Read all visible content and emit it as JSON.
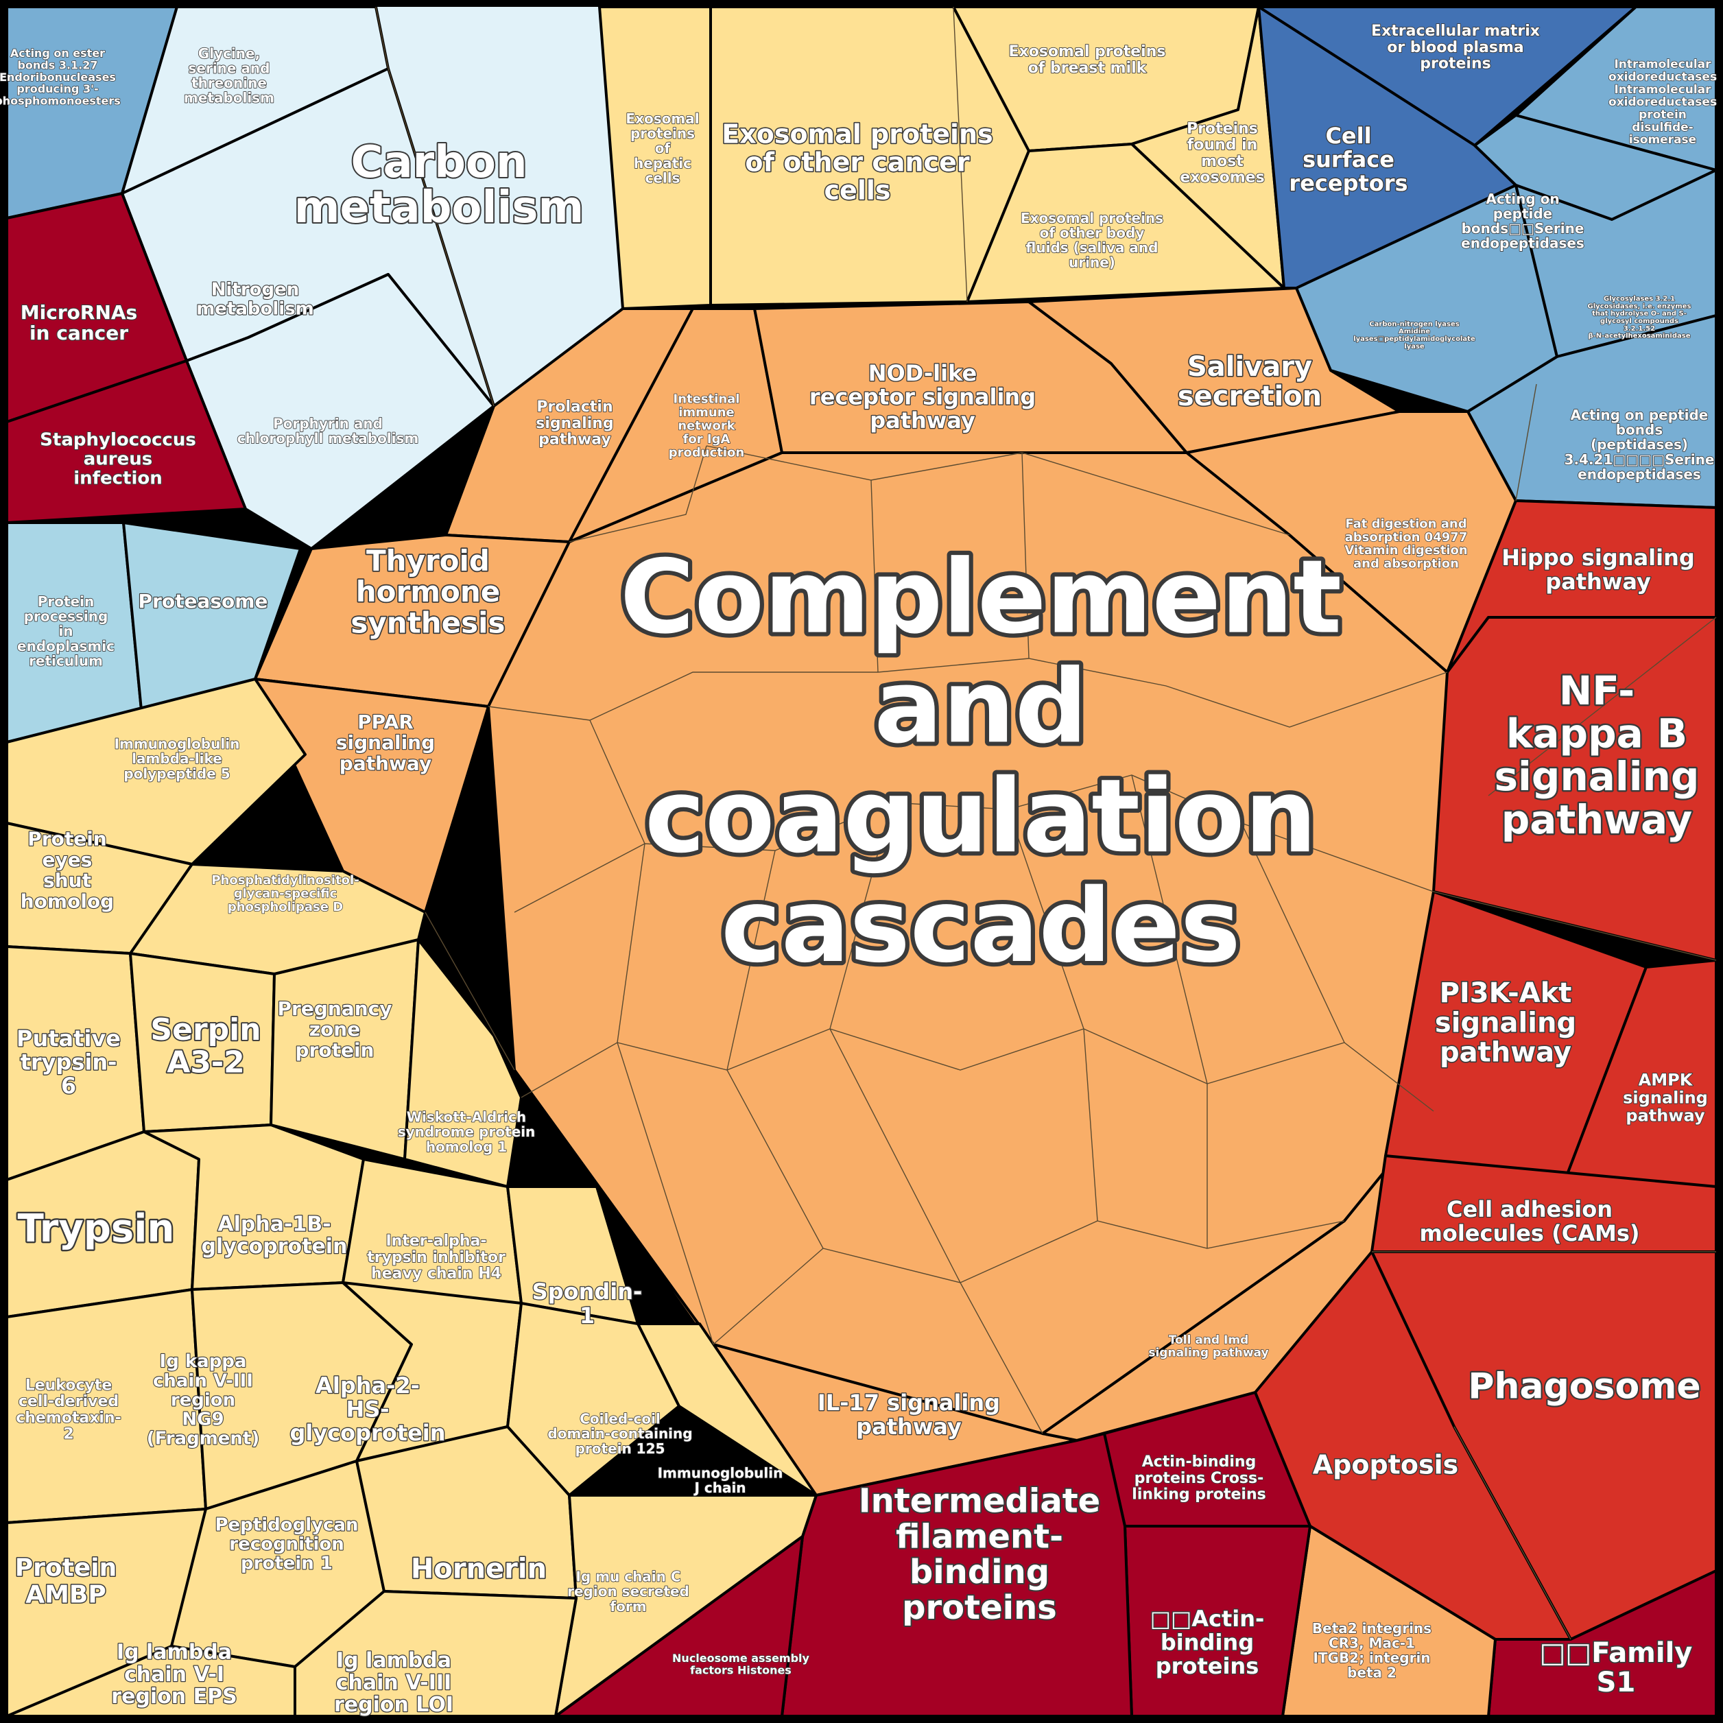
{
  "colors": {
    "outline": "#000000",
    "fine_line": "#5a4a30",
    "light_blue": "#e1f2f9",
    "pale_blue": "#a9d6e6",
    "mid_blue": "#78aed3",
    "deep_blue": "#4272b4",
    "pale_yellow": "#fee194",
    "orange": "#f9ae68",
    "red": "#d73127",
    "crimson": "#a50024"
  },
  "cells": [
    {
      "id": "acting-on-ester",
      "label": [
        "Acting on ester",
        "bonds 3.1.27",
        "Endoribonucleases",
        "producing 3'-",
        "phosphomonoesters"
      ],
      "fill": "mid_blue"
    },
    {
      "id": "carbon-metabolism-group",
      "label": [
        "Carbon",
        "metabolism"
      ],
      "fill": "light_blue"
    },
    {
      "id": "glycine",
      "label": [
        "Glycine,",
        "serine and",
        "threonine",
        "metabolism"
      ],
      "fill": "light_blue"
    },
    {
      "id": "nitrogen",
      "label": [
        "Nitrogen",
        "metabolism"
      ],
      "fill": "light_blue"
    },
    {
      "id": "porphyrin",
      "label": [
        "Porphyrin and",
        "chlorophyll metabolism"
      ],
      "fill": "light_blue"
    },
    {
      "id": "micrornas",
      "label": [
        "MicroRNAs",
        "in cancer"
      ],
      "fill": "crimson"
    },
    {
      "id": "staph",
      "label": [
        "Staphylococcus",
        "aureus",
        "infection"
      ],
      "fill": "crimson"
    },
    {
      "id": "protein-processing",
      "label": [
        "Protein",
        "processing",
        "in",
        "endoplasmic",
        "reticulum"
      ],
      "fill": "pale_blue"
    },
    {
      "id": "proteasome",
      "label": [
        "Proteasome"
      ],
      "fill": "pale_blue"
    },
    {
      "id": "exosomal-hepatic",
      "label": [
        "Exosomal",
        "proteins",
        "of",
        "hepatic",
        "cells"
      ],
      "fill": "pale_yellow"
    },
    {
      "id": "exosomal-cancer",
      "label": [
        "Exosomal proteins",
        "of other cancer",
        "cells"
      ],
      "fill": "pale_yellow"
    },
    {
      "id": "exosomal-milk",
      "label": [
        "Exosomal proteins",
        "of breast milk"
      ],
      "fill": "pale_yellow"
    },
    {
      "id": "proteins-exosomes",
      "label": [
        "Proteins",
        "found in",
        "most",
        "exosomes"
      ],
      "fill": "pale_yellow"
    },
    {
      "id": "exosomal-fluids",
      "label": [
        "Exosomal proteins",
        "of other body",
        "fluids (saliva and",
        "urine)"
      ],
      "fill": "pale_yellow"
    },
    {
      "id": "extracellular-matrix",
      "label": [
        "Extracellular matrix",
        "or blood plasma",
        "proteins"
      ],
      "fill": "deep_blue"
    },
    {
      "id": "cell-surface",
      "label": [
        "Cell",
        "surface",
        "receptors"
      ],
      "fill": "deep_blue"
    },
    {
      "id": "intramolecular",
      "label": [
        "Intramolecular",
        "oxidoreductases",
        "Intramolecular",
        "oxidoreductases",
        "protein",
        "disulfide-",
        "isomerase"
      ],
      "fill": "mid_blue"
    },
    {
      "id": "peptide-serine",
      "label": [
        "Acting on",
        "peptide",
        "bonds□□Serine",
        "endopeptidases"
      ],
      "fill": "mid_blue"
    },
    {
      "id": "carbon-nitrogen",
      "label": [
        "Carbon-nitrogen lyases",
        "Amidine",
        "lyases□peptidylamidoglycolate",
        "lyase"
      ],
      "fill": "mid_blue"
    },
    {
      "id": "glycosylases",
      "label": [
        "Glycosylases 3.2.1",
        "Glycosidases, i.e. enzymes",
        "that hydrolyse O- and S-",
        "glycosyl compounds",
        "3.2.1.52",
        "β-N-acetylhexosaminidase"
      ],
      "fill": "mid_blue"
    },
    {
      "id": "peptidases-3421",
      "label": [
        "Acting on peptide",
        "bonds",
        "(peptidases)",
        "3.4.21□□□□Serine",
        "endopeptidases"
      ],
      "fill": "mid_blue"
    },
    {
      "id": "prolactin",
      "label": [
        "Prolactin",
        "signaling",
        "pathway"
      ],
      "fill": "orange"
    },
    {
      "id": "intestinal-iga",
      "label": [
        "Intestinal",
        "immune",
        "network",
        "for IgA",
        "production"
      ],
      "fill": "orange"
    },
    {
      "id": "nod-like",
      "label": [
        "NOD-like",
        "receptor signaling",
        "pathway"
      ],
      "fill": "orange"
    },
    {
      "id": "salivary",
      "label": [
        "Salivary",
        "secretion"
      ],
      "fill": "orange"
    },
    {
      "id": "fat-digestion",
      "label": [
        "Fat digestion and",
        "absorption 04977",
        "Vitamin digestion",
        "and absorption"
      ],
      "fill": "orange"
    },
    {
      "id": "thyroid",
      "label": [
        "Thyroid",
        "hormone",
        "synthesis"
      ],
      "fill": "orange"
    },
    {
      "id": "ppar",
      "label": [
        "PPAR",
        "signaling",
        "pathway"
      ],
      "fill": "orange"
    },
    {
      "id": "complement",
      "label": [
        "Complement",
        "and",
        "coagulation",
        "cascades"
      ],
      "fill": "orange"
    },
    {
      "id": "il17",
      "label": [
        "IL-17 signaling",
        "pathway"
      ],
      "fill": "orange"
    },
    {
      "id": "toll-imd",
      "label": [
        "Toll and Imd",
        "signaling pathway"
      ],
      "fill": "orange"
    },
    {
      "id": "hippo",
      "label": [
        "Hippo signaling",
        "pathway"
      ],
      "fill": "red"
    },
    {
      "id": "nfkb",
      "label": [
        "NF-",
        "kappa B",
        "signaling",
        "pathway"
      ],
      "fill": "red"
    },
    {
      "id": "pi3k",
      "label": [
        "PI3K-Akt",
        "signaling",
        "pathway"
      ],
      "fill": "red"
    },
    {
      "id": "ampk",
      "label": [
        "AMPK",
        "signaling",
        "pathway"
      ],
      "fill": "red"
    },
    {
      "id": "cams",
      "label": [
        "Cell adhesion",
        "molecules (CAMs)"
      ],
      "fill": "red"
    },
    {
      "id": "phagosome",
      "label": [
        "Phagosome"
      ],
      "fill": "red"
    },
    {
      "id": "apoptosis",
      "label": [
        "Apoptosis"
      ],
      "fill": "red"
    },
    {
      "id": "family-s1",
      "label": [
        "□□Family",
        "S1"
      ],
      "fill": "crimson"
    },
    {
      "id": "beta2-integrins",
      "label": [
        "Beta2 integrins",
        "CR3, Mac-1",
        "ITGB2; integrin",
        "beta 2"
      ],
      "fill": "orange"
    },
    {
      "id": "actin-binding",
      "label": [
        "□□Actin-",
        "binding",
        "proteins"
      ],
      "fill": "crimson"
    },
    {
      "id": "actin-crosslinking",
      "label": [
        "Actin-binding",
        "proteins Cross-",
        "linking proteins"
      ],
      "fill": "crimson"
    },
    {
      "id": "intermediate-filament",
      "label": [
        "Intermediate",
        "filament-",
        "binding",
        "proteins"
      ],
      "fill": "crimson"
    },
    {
      "id": "nucleosome",
      "label": [
        "Nucleosome assembly",
        "factors Histones"
      ],
      "fill": "crimson"
    },
    {
      "id": "immunoglobulin-lambda5",
      "label": [
        "Immunoglobulin",
        "lambda-like",
        "polypeptide 5"
      ],
      "fill": "pale_yellow"
    },
    {
      "id": "protein-eyes-shut",
      "label": [
        "Protein",
        "eyes",
        "shut",
        "homolog"
      ],
      "fill": "pale_yellow"
    },
    {
      "id": "phosphatidylinositol",
      "label": [
        "Phosphatidylinositol-",
        "glycan-specific",
        "phospholipase D"
      ],
      "fill": "pale_yellow"
    },
    {
      "id": "putative-trypsin",
      "label": [
        "Putative",
        "trypsin-",
        "6"
      ],
      "fill": "pale_yellow"
    },
    {
      "id": "serpin",
      "label": [
        "Serpin",
        "A3-2"
      ],
      "fill": "pale_yellow"
    },
    {
      "id": "pregnancy-zone",
      "label": [
        "Pregnancy",
        "zone",
        "protein"
      ],
      "fill": "pale_yellow"
    },
    {
      "id": "wiskott",
      "label": [
        "Wiskott-Aldrich",
        "syndrome protein",
        "homolog 1"
      ],
      "fill": "pale_yellow"
    },
    {
      "id": "trypsin",
      "label": [
        "Trypsin"
      ],
      "fill": "pale_yellow"
    },
    {
      "id": "alpha1b",
      "label": [
        "Alpha-1B-",
        "glycoprotein"
      ],
      "fill": "pale_yellow"
    },
    {
      "id": "inter-alpha",
      "label": [
        "Inter-alpha-",
        "trypsin inhibitor",
        "heavy chain H4"
      ],
      "fill": "pale_yellow"
    },
    {
      "id": "spondin",
      "label": [
        "Spondin-",
        "1"
      ],
      "fill": "pale_yellow"
    },
    {
      "id": "leukocyte",
      "label": [
        "Leukocyte",
        "cell-derived",
        "chemotaxin-",
        "2"
      ],
      "fill": "pale_yellow"
    },
    {
      "id": "ig-kappa",
      "label": [
        "Ig kappa",
        "chain V-III",
        "region",
        "NG9",
        "(Fragment)"
      ],
      "fill": "pale_yellow"
    },
    {
      "id": "alpha2hs",
      "label": [
        "Alpha-2-",
        "HS-",
        "glycoprotein"
      ],
      "fill": "pale_yellow"
    },
    {
      "id": "coiled-coil",
      "label": [
        "Coiled-coil",
        "domain-containing",
        "protein 125"
      ],
      "fill": "pale_yellow"
    },
    {
      "id": "immunoglobulin-j",
      "label": [
        "Immunoglobulin",
        "J chain"
      ],
      "fill": "pale_yellow"
    },
    {
      "id": "protein-ambp",
      "label": [
        "Protein",
        "AMBP"
      ],
      "fill": "pale_yellow"
    },
    {
      "id": "peptidoglycan",
      "label": [
        "Peptidoglycan",
        "recognition",
        "protein 1"
      ],
      "fill": "pale_yellow"
    },
    {
      "id": "hornerin",
      "label": [
        "Hornerin"
      ],
      "fill": "pale_yellow"
    },
    {
      "id": "ig-mu",
      "label": [
        "Ig mu chain C",
        "region secreted",
        "form"
      ],
      "fill": "pale_yellow"
    },
    {
      "id": "ig-lambda-eps",
      "label": [
        "Ig lambda",
        "chain V-I",
        "region EPS"
      ],
      "fill": "pale_yellow"
    },
    {
      "id": "ig-lambda-loi",
      "label": [
        "Ig lambda",
        "chain V-III",
        "region LOI"
      ],
      "fill": "pale_yellow"
    }
  ]
}
